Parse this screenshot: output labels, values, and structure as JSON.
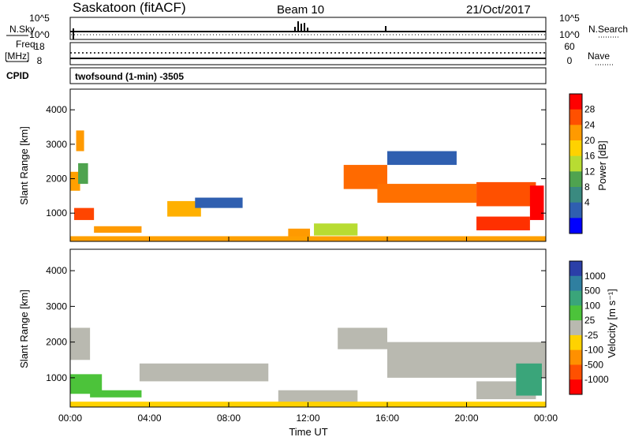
{
  "header": {
    "station": "Saskatoon (fitACF)",
    "beam": "Beam 10",
    "date": "21/Oct/2017"
  },
  "top_panel_labels": {
    "nsky": "N.Sky",
    "nsearch": "N.Search",
    "freq": "Freq.",
    "freq_unit": "[MHz]",
    "cpid": "CPID",
    "nave": "Nave",
    "cpid_value": "twofsound (1-min) -3505",
    "noise_ticks": [
      "10^5",
      "10^0"
    ],
    "freq_ticks": [
      "18",
      "8"
    ],
    "nave_ticks": [
      "60",
      "0"
    ]
  },
  "chart_data": [
    {
      "type": "heatmap",
      "title": "",
      "xlabel": "",
      "ylabel": "Slant Range [km]",
      "xlim": [
        0,
        24
      ],
      "ylim": [
        180,
        4600
      ],
      "x_ticks": [
        "00:00",
        "04:00",
        "08:00",
        "12:00",
        "16:00",
        "20:00",
        "00:00"
      ],
      "y_ticks": [
        1000,
        2000,
        3000,
        4000
      ],
      "colorbar_label": "Power [dB]",
      "colorbar_ticks": [
        28,
        24,
        20,
        16,
        12,
        8,
        4
      ],
      "colorbar_colors": [
        "#ff0000",
        "#ff5000",
        "#ff9a00",
        "#ffd200",
        "#b8dc32",
        "#4fa34f",
        "#3a8a80",
        "#2f5fb0",
        "#0000ff"
      ],
      "regions": [
        {
          "t0": 0.0,
          "t1": 0.5,
          "r0": 1650,
          "r1": 2200,
          "color": "#ffa000"
        },
        {
          "t0": 0.4,
          "t1": 0.9,
          "r0": 1850,
          "r1": 2450,
          "color": "#4fa34f"
        },
        {
          "t0": 0.2,
          "t1": 1.2,
          "r0": 800,
          "r1": 1150,
          "color": "#ff4500"
        },
        {
          "t0": 0.3,
          "t1": 0.7,
          "r0": 2800,
          "r1": 3400,
          "color": "#ff9a00"
        },
        {
          "t0": 1.2,
          "t1": 3.6,
          "r0": 430,
          "r1": 620,
          "color": "#ff9a00"
        },
        {
          "t0": 4.9,
          "t1": 6.6,
          "r0": 900,
          "r1": 1350,
          "color": "#ffb000"
        },
        {
          "t0": 6.3,
          "t1": 8.7,
          "r0": 1150,
          "r1": 1450,
          "color": "#2f5fb0"
        },
        {
          "t0": 11.0,
          "t1": 12.1,
          "r0": 250,
          "r1": 550,
          "color": "#ff9a00"
        },
        {
          "t0": 12.3,
          "t1": 14.5,
          "r0": 350,
          "r1": 700,
          "color": "#b8dc32"
        },
        {
          "t0": 13.8,
          "t1": 16.0,
          "r0": 1700,
          "r1": 2400,
          "color": "#ff6a00"
        },
        {
          "t0": 15.5,
          "t1": 20.5,
          "r0": 1300,
          "r1": 1850,
          "color": "#ff7000"
        },
        {
          "t0": 20.5,
          "t1": 23.5,
          "r0": 1200,
          "r1": 1900,
          "color": "#ff5000"
        },
        {
          "t0": 16.0,
          "t1": 19.5,
          "r0": 2400,
          "r1": 2800,
          "color": "#2f5fb0"
        },
        {
          "t0": 20.5,
          "t1": 23.2,
          "r0": 500,
          "r1": 900,
          "color": "#ff3000"
        },
        {
          "t0": 23.2,
          "t1": 23.9,
          "r0": 800,
          "r1": 1800,
          "color": "#ff0000"
        },
        {
          "t0": 0.0,
          "t1": 24.0,
          "r0": 180,
          "r1": 330,
          "color": "#ffa000"
        }
      ]
    },
    {
      "type": "heatmap",
      "title": "",
      "xlabel": "Time UT",
      "ylabel": "Slant Range [km]",
      "xlim": [
        0,
        24
      ],
      "ylim": [
        180,
        4600
      ],
      "x_ticks": [
        "00:00",
        "04:00",
        "08:00",
        "12:00",
        "16:00",
        "20:00",
        "00:00"
      ],
      "y_ticks": [
        1000,
        2000,
        3000,
        4000
      ],
      "colorbar_label": "Velocity [m s⁻¹]",
      "colorbar_ticks": [
        "1000",
        "500",
        "100",
        "25",
        "-25",
        "-100",
        "-500",
        "-1000"
      ],
      "colorbar_colors": [
        "#2b3fa8",
        "#2f7fa0",
        "#3aa57a",
        "#4cc33a",
        "#b9b9b0",
        "#ffd200",
        "#ff9000",
        "#ff5000",
        "#ff0000"
      ],
      "regions": [
        {
          "t0": 0.0,
          "t1": 1.0,
          "r0": 1500,
          "r1": 2400,
          "color": "#b9b9b0"
        },
        {
          "t0": 0.0,
          "t1": 1.6,
          "r0": 550,
          "r1": 1100,
          "color": "#4cc33a"
        },
        {
          "t0": 1.0,
          "t1": 3.6,
          "r0": 450,
          "r1": 650,
          "color": "#4cc33a"
        },
        {
          "t0": 3.5,
          "t1": 10.0,
          "r0": 900,
          "r1": 1400,
          "color": "#b9b9b0"
        },
        {
          "t0": 10.5,
          "t1": 14.5,
          "r0": 300,
          "r1": 650,
          "color": "#b9b9b0"
        },
        {
          "t0": 13.5,
          "t1": 16.0,
          "r0": 1800,
          "r1": 2400,
          "color": "#b9b9b0"
        },
        {
          "t0": 16.0,
          "t1": 24.0,
          "r0": 1000,
          "r1": 2000,
          "color": "#b9b9b0"
        },
        {
          "t0": 20.5,
          "t1": 23.5,
          "r0": 400,
          "r1": 900,
          "color": "#b9b9b0"
        },
        {
          "t0": 22.5,
          "t1": 23.8,
          "r0": 500,
          "r1": 1400,
          "color": "#3aa57a"
        },
        {
          "t0": 0.0,
          "t1": 24.0,
          "r0": 180,
          "r1": 330,
          "color": "#ffd200"
        }
      ]
    }
  ]
}
